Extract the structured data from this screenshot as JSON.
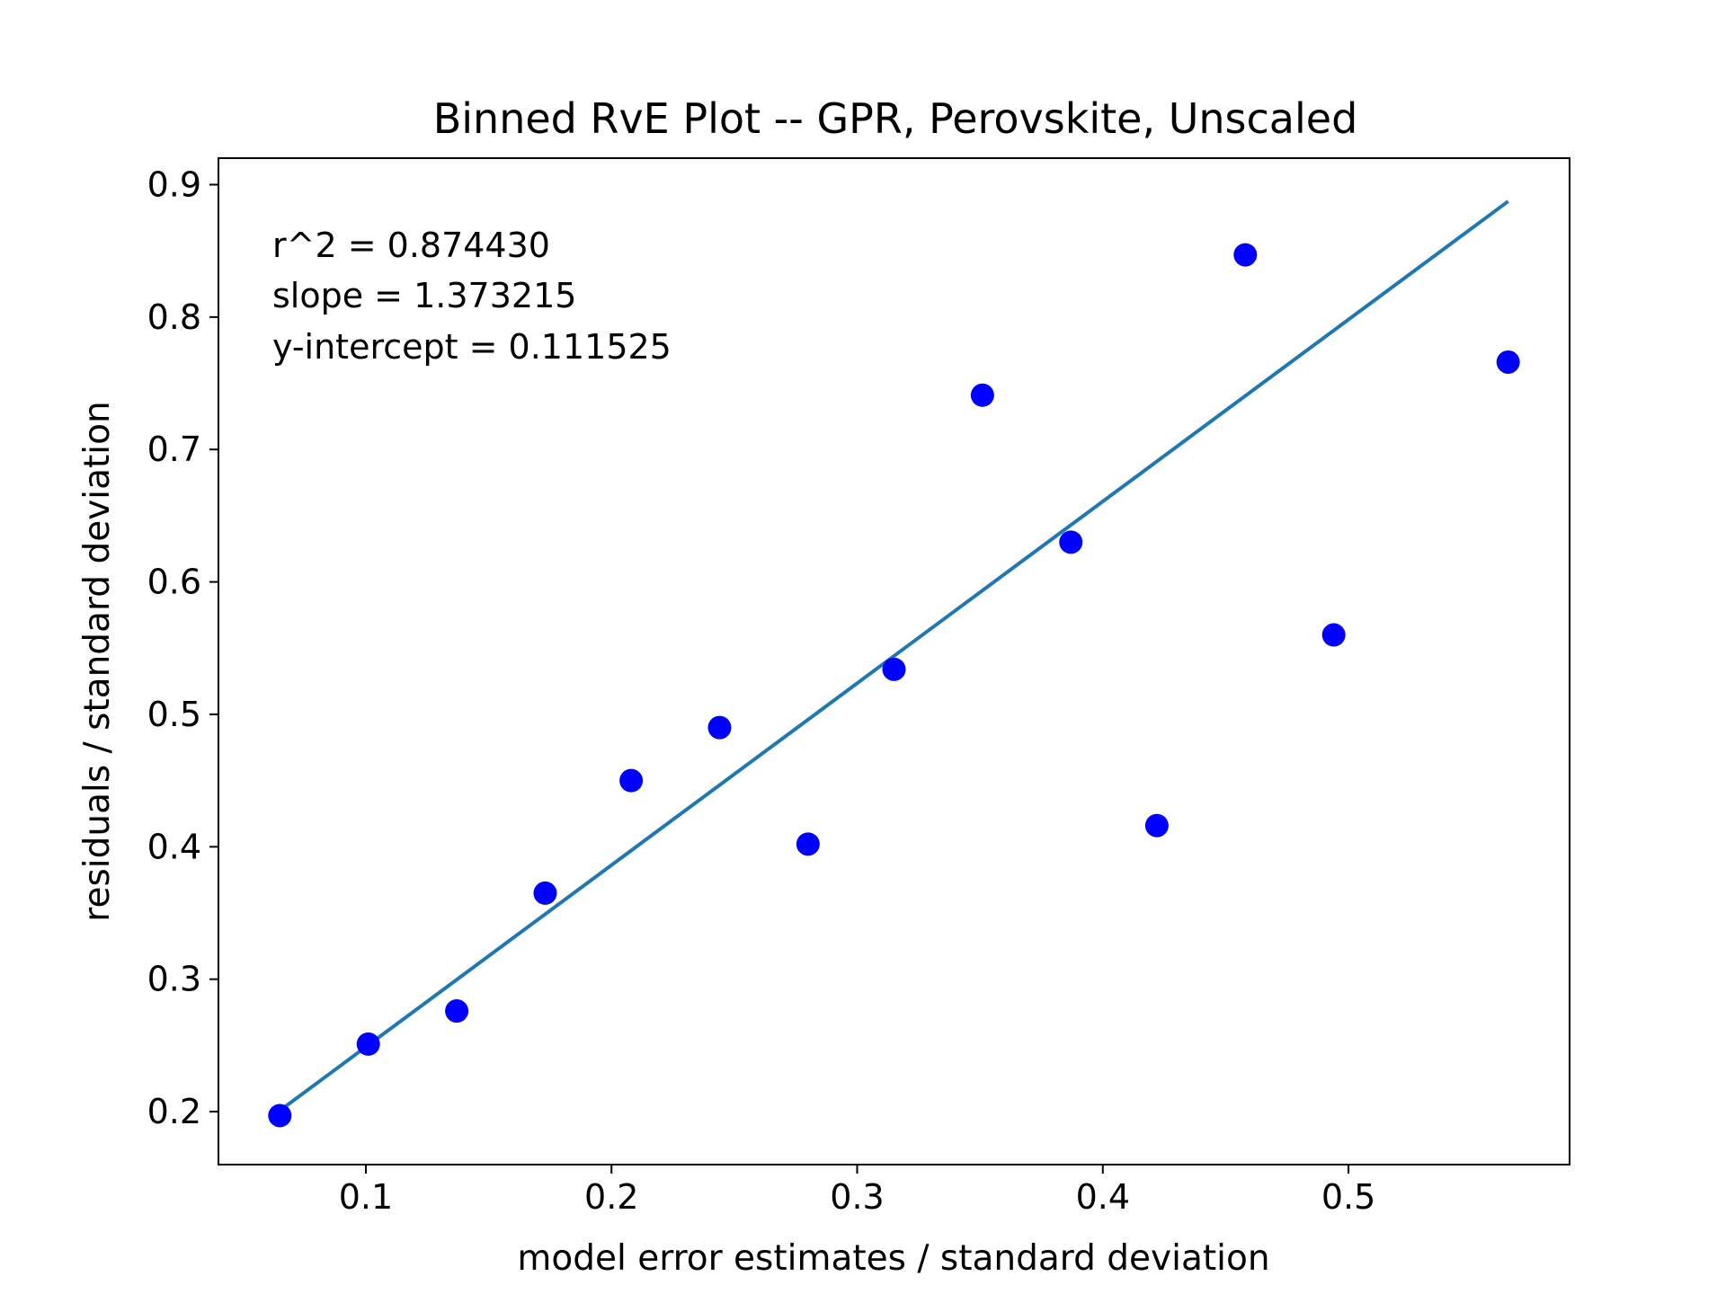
{
  "chart_data": {
    "type": "scatter",
    "title": "Binned RvE Plot -- GPR, Perovskite, Unscaled",
    "xlabel": "model error estimates / standard deviation",
    "ylabel": "residuals / standard deviation",
    "xlim": [
      0.04,
      0.59
    ],
    "ylim": [
      0.16,
      0.92
    ],
    "xticks": [
      0.1,
      0.2,
      0.3,
      0.4,
      0.5
    ],
    "xtick_labels": [
      "0.1",
      "0.2",
      "0.3",
      "0.4",
      "0.5"
    ],
    "yticks": [
      0.2,
      0.3,
      0.4,
      0.5,
      0.6,
      0.7,
      0.8,
      0.9
    ],
    "ytick_labels": [
      "0.2",
      "0.3",
      "0.4",
      "0.5",
      "0.6",
      "0.7",
      "0.8",
      "0.9"
    ],
    "grid": false,
    "series": [
      {
        "type": "scatter",
        "color": "#0000ff",
        "x": [
          0.065,
          0.101,
          0.137,
          0.173,
          0.208,
          0.244,
          0.28,
          0.315,
          0.351,
          0.387,
          0.422,
          0.458,
          0.494,
          0.565
        ],
        "y": [
          0.197,
          0.251,
          0.276,
          0.365,
          0.45,
          0.49,
          0.402,
          0.534,
          0.741,
          0.63,
          0.416,
          0.847,
          0.56,
          0.766
        ]
      },
      {
        "type": "line",
        "color": "#1f77b4",
        "slope": 1.373215,
        "intercept": 0.111525,
        "x_range": [
          0.065,
          0.565
        ]
      }
    ],
    "annotations": [
      "r^2 = 0.874430",
      "slope = 1.373215",
      "y-intercept = 0.111525"
    ]
  }
}
